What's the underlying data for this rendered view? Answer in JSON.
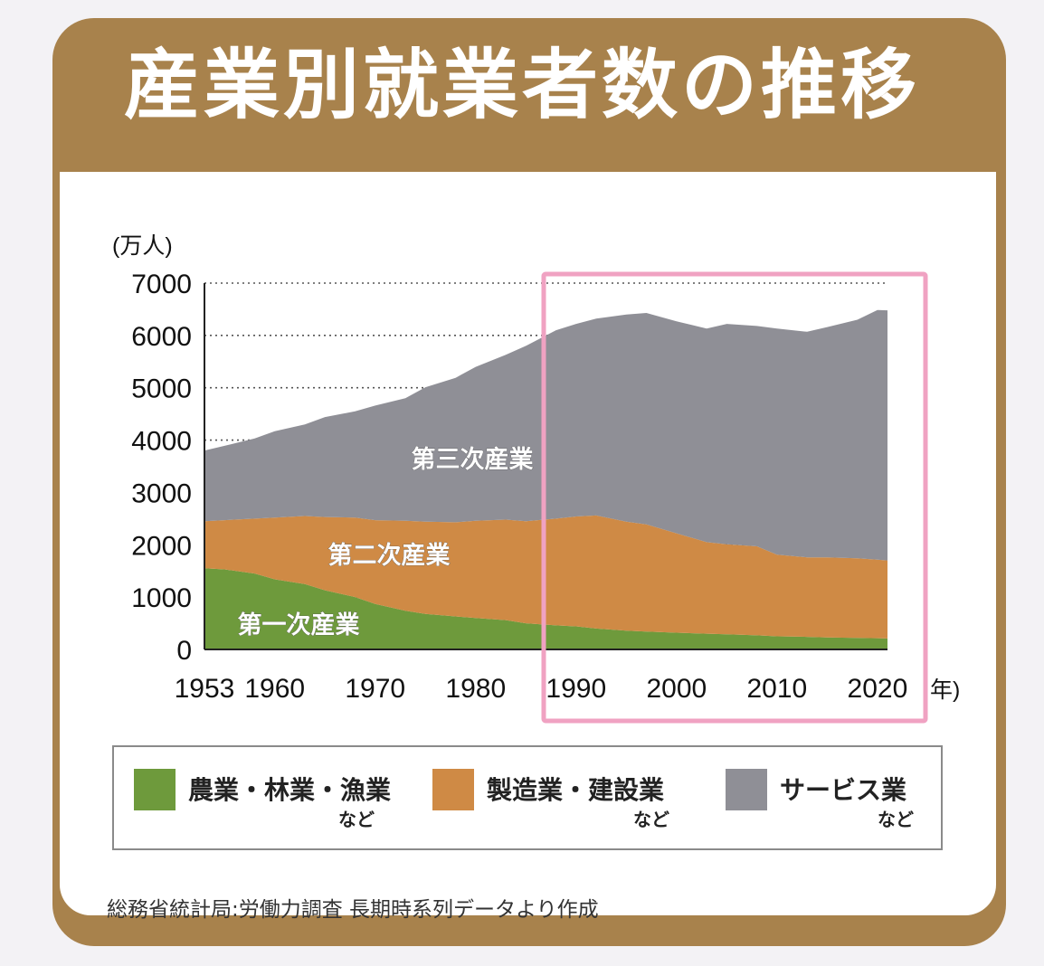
{
  "title": "産業別就業者数の推移",
  "source": "総務省統計局:労働力調査 長期時系列データより作成",
  "legend": [
    {
      "label": "農業・林業・漁業",
      "sub": "など",
      "color": "#6e9a3c"
    },
    {
      "label": "製造業・建設業",
      "sub": "など",
      "color": "#cf8a45"
    },
    {
      "label": "サービス業",
      "sub": "など",
      "color": "#8f8f96"
    }
  ],
  "colors": {
    "primary": "#6e9a3c",
    "secondary": "#cf8a45",
    "tertiary": "#8f8f96",
    "highlight": "#f0a2c2",
    "card": "#a8824c"
  },
  "chart_data": {
    "type": "area",
    "stacked": true,
    "title": "産業別就業者数の推移",
    "ylabel": "(万人)",
    "xlabel": "年)",
    "ylim": [
      0,
      7000
    ],
    "xlim": [
      1953,
      2021
    ],
    "yticks": [
      0,
      1000,
      2000,
      3000,
      4000,
      5000,
      6000,
      7000
    ],
    "xticks": [
      1953,
      1960,
      1970,
      1980,
      1990,
      2000,
      2010,
      2020
    ],
    "grid": "horizontal dotted",
    "highlight_range": [
      1985,
      2022
    ],
    "x": [
      1953,
      1955,
      1958,
      1960,
      1963,
      1965,
      1968,
      1970,
      1973,
      1975,
      1978,
      1980,
      1983,
      1985,
      1988,
      1990,
      1992,
      1995,
      1997,
      2000,
      2003,
      2005,
      2008,
      2010,
      2013,
      2015,
      2018,
      2020,
      2021
    ],
    "series": [
      {
        "name": "第一次産業",
        "values": [
          1550,
          1530,
          1450,
          1340,
          1250,
          1130,
          1000,
          870,
          740,
          680,
          630,
          600,
          560,
          500,
          460,
          440,
          400,
          360,
          340,
          320,
          300,
          290,
          270,
          250,
          240,
          230,
          220,
          215,
          210
        ]
      },
      {
        "name": "第二次産業",
        "values": [
          900,
          940,
          1050,
          1180,
          1300,
          1400,
          1520,
          1600,
          1720,
          1760,
          1800,
          1860,
          1920,
          1950,
          2040,
          2100,
          2160,
          2080,
          2050,
          1900,
          1750,
          1720,
          1700,
          1560,
          1520,
          1530,
          1520,
          1500,
          1490
        ]
      },
      {
        "name": "第三次産業",
        "values": [
          1350,
          1420,
          1530,
          1650,
          1750,
          1910,
          2030,
          2190,
          2340,
          2570,
          2760,
          2940,
          3150,
          3350,
          3600,
          3680,
          3760,
          3960,
          4040,
          4050,
          4080,
          4210,
          4210,
          4320,
          4310,
          4400,
          4560,
          4770,
          4780
        ]
      }
    ]
  }
}
